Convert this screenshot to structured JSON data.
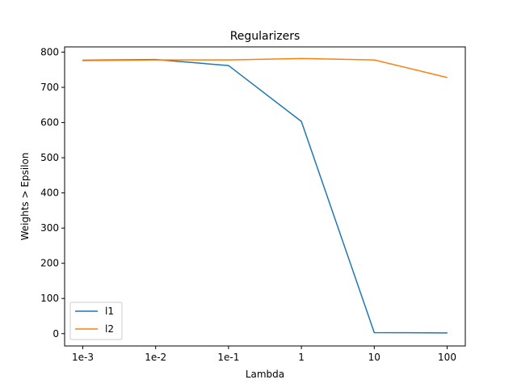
{
  "chart_data": {
    "type": "line",
    "title": "Regularizers",
    "xlabel": "Lambda",
    "ylabel": "Weights > Epsilon",
    "categories": [
      "1e-3",
      "1e-2",
      "1e-1",
      "1",
      "10",
      "100"
    ],
    "ylim": [
      -35,
      815
    ],
    "yticks": [
      0,
      100,
      200,
      300,
      400,
      500,
      600,
      700,
      800
    ],
    "grid": false,
    "legend_position": "lower-left",
    "series": [
      {
        "name": "l1",
        "color": "#1f77b4",
        "values": [
          777,
          779,
          762,
          603,
          3,
          2
        ]
      },
      {
        "name": "l2",
        "color": "#ff7f0e",
        "values": [
          776,
          778,
          778,
          782,
          778,
          728
        ]
      }
    ]
  }
}
